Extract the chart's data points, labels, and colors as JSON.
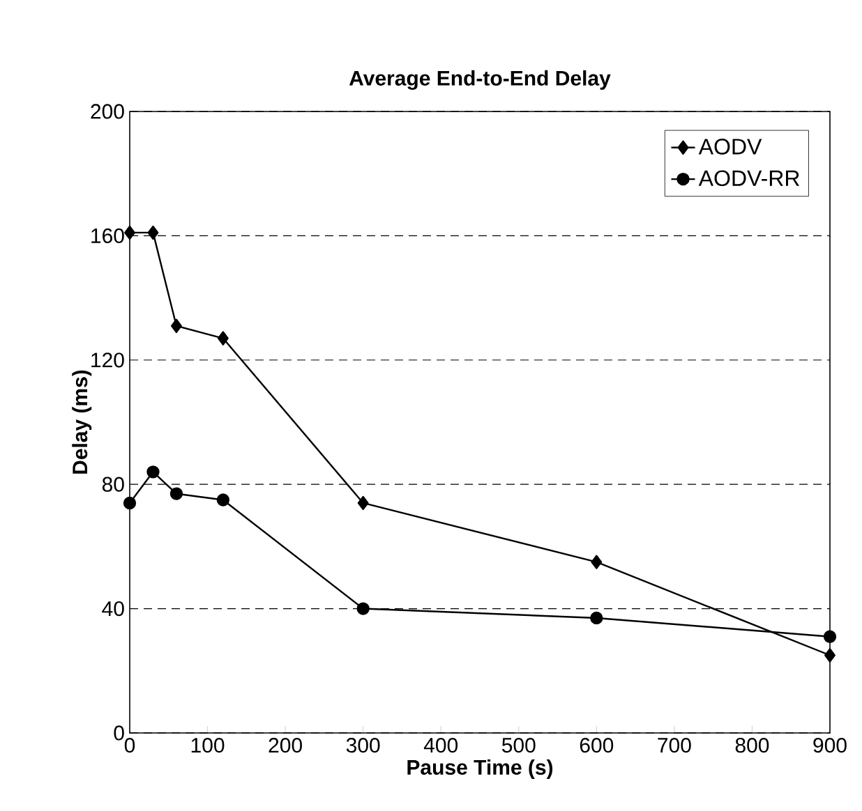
{
  "chart_data": {
    "type": "line",
    "title": "Average End-to-End Delay",
    "xlabel": "Pause Time (s)",
    "ylabel": "Delay (ms)",
    "x": [
      0,
      30,
      60,
      120,
      300,
      600,
      900
    ],
    "series": [
      {
        "name": "AODV",
        "color": "#000000",
        "marker": "diamond",
        "values": [
          161,
          161,
          131,
          127,
          74,
          55,
          25
        ]
      },
      {
        "name": "AODV-RR",
        "color": "#000000",
        "marker": "circle",
        "values": [
          74,
          84,
          77,
          75,
          40,
          37,
          31
        ]
      }
    ],
    "xlim": [
      0,
      900
    ],
    "xticks": [
      0,
      100,
      200,
      300,
      400,
      500,
      600,
      700,
      800,
      900
    ],
    "ylim": [
      0,
      200
    ],
    "yticks": [
      0,
      40,
      80,
      120,
      160,
      200
    ],
    "grid": "y",
    "legend": "top right",
    "line_style": "solid"
  }
}
